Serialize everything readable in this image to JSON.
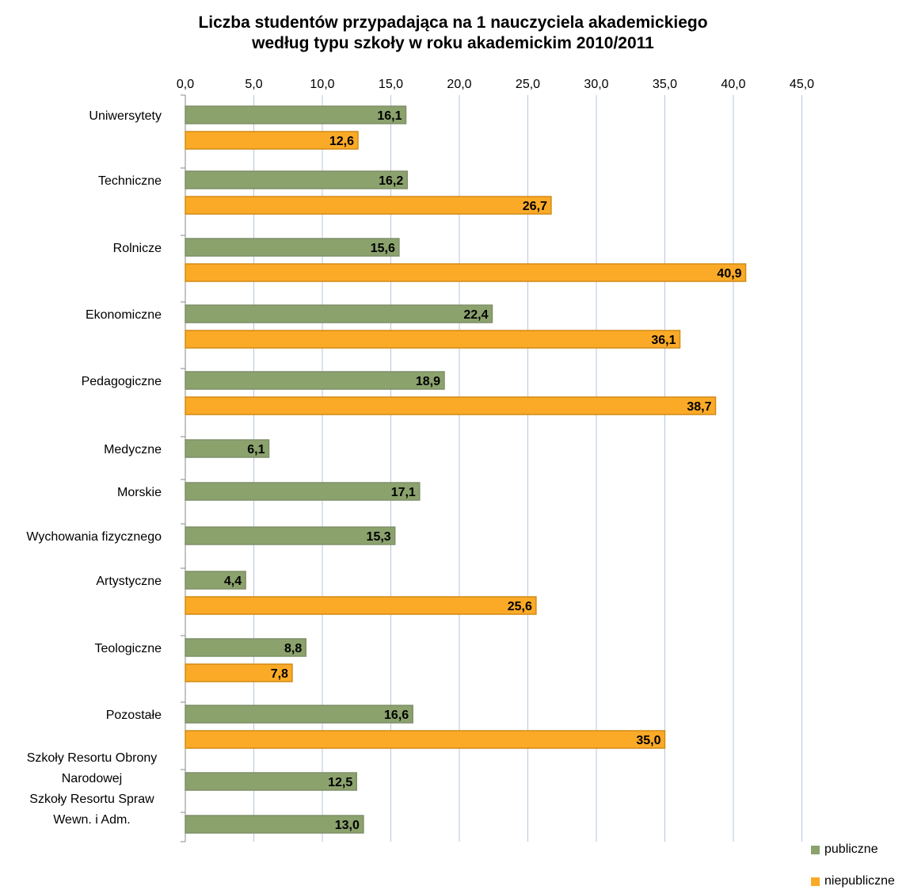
{
  "colors": {
    "publiczne": "#8ba26d",
    "publiczne_border": "#7f8f6a",
    "niepubliczne": "#fbaa27",
    "niepubliczne_border": "#d18a14",
    "grid": "#b7c7dc",
    "axis": "#8a8a8a"
  },
  "chart_data": {
    "type": "bar",
    "orientation": "horizontal",
    "title": "Liczba studentów przypadająca na 1 nauczyciela akademickiego według typu szkoły w roku akademickim 2010/2011",
    "title_lines": [
      "Liczba studentów przypadająca na 1 nauczyciela akademickiego",
      "według typu szkoły w roku akademickim 2010/2011"
    ],
    "xlim": [
      0,
      45
    ],
    "x_ticks": [
      0,
      5,
      10,
      15,
      20,
      25,
      30,
      35,
      40,
      45
    ],
    "x_tick_labels": [
      "0,0",
      "5,0",
      "10,0",
      "15,0",
      "20,0",
      "25,0",
      "30,0",
      "35,0",
      "40,0",
      "45,0"
    ],
    "x_axis_position": "top",
    "grid": true,
    "legend_position": "bottom-right",
    "categories": [
      "Uniwersytety",
      "Techniczne",
      "Rolnicze",
      "Ekonomiczne",
      "Pedagogiczne",
      "Medyczne",
      "Morskie",
      "Wychowania fizycznego",
      "Artystyczne",
      "Teologiczne",
      "Pozostałe",
      "Szkoły Resortu Obrony Narodowej",
      "Szkoły Resortu Spraw Wewn. i Adm."
    ],
    "category_label_lines": [
      [
        "Uniwersytety"
      ],
      [
        "Techniczne"
      ],
      [
        "Rolnicze"
      ],
      [
        "Ekonomiczne"
      ],
      [
        "Pedagogiczne"
      ],
      [
        "Medyczne"
      ],
      [
        "Morskie"
      ],
      [
        "Wychowania fizycznego"
      ],
      [
        "Artystyczne"
      ],
      [
        "Teologiczne"
      ],
      [
        "Pozostałe"
      ],
      [
        "Szkoły Resortu Obrony",
        "Narodowej"
      ],
      [
        "Szkoły Resortu Spraw",
        "Wewn. i Adm."
      ]
    ],
    "series": [
      {
        "name": "publiczne",
        "color": "#8ba26d",
        "values": [
          16.1,
          16.2,
          15.6,
          22.4,
          18.9,
          6.1,
          17.1,
          15.3,
          4.4,
          8.8,
          16.6,
          12.5,
          13.0
        ],
        "labels": [
          "16,1",
          "16,2",
          "15,6",
          "22,4",
          "18,9",
          "6,1",
          "17,1",
          "15,3",
          "4,4",
          "8,8",
          "16,6",
          "12,5",
          "13,0"
        ]
      },
      {
        "name": "niepubliczne",
        "color": "#fbaa27",
        "values": [
          12.6,
          26.7,
          40.9,
          36.1,
          38.7,
          null,
          null,
          null,
          25.6,
          7.8,
          35.0,
          null,
          null
        ],
        "labels": [
          "12,6",
          "26,7",
          "40,9",
          "36,1",
          "38,7",
          null,
          null,
          null,
          "25,6",
          "7,8",
          "35,0",
          null,
          null
        ]
      }
    ]
  }
}
